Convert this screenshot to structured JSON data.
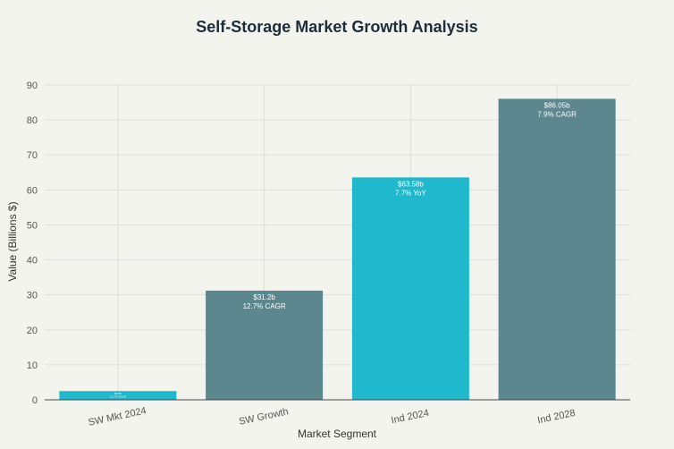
{
  "chart_data": {
    "type": "bar",
    "title": "Self-Storage Market Growth Analysis",
    "xlabel": "Market Segment",
    "ylabel": "Value (Billions $)",
    "ylim": [
      0,
      90
    ],
    "yticks": [
      0,
      10,
      20,
      30,
      40,
      50,
      60,
      70,
      80,
      90
    ],
    "grid": true,
    "categories": [
      "SW Mkt 2024",
      "SW Growth",
      "Ind 2024",
      "Ind 2028"
    ],
    "values": [
      2.5,
      31.2,
      63.58,
      86.05
    ],
    "colors": [
      "#1fb8cd",
      "#5d878f",
      "#1fb8cd",
      "#5d878f"
    ],
    "bar_labels": [
      [
        "$2.5b",
        "12.7% CAGR"
      ],
      [
        "$31.2b",
        "12.7% CAGR"
      ],
      [
        "$63.58b",
        "7.7% YoY"
      ],
      [
        "$86.05b",
        "7.9% CAGR"
      ]
    ]
  }
}
